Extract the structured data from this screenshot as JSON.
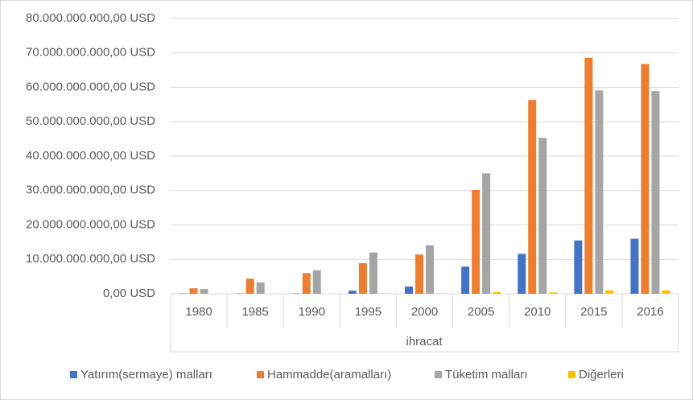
{
  "chart_data": {
    "type": "bar",
    "x_group_label": "ihracat",
    "categories": [
      "1980",
      "1985",
      "1990",
      "1995",
      "2000",
      "2005",
      "2010",
      "2015",
      "2016"
    ],
    "series": [
      {
        "name": "Yatırım(sermaye) malları",
        "color": "#4472c4",
        "values": [
          100000000,
          100000000,
          100000000,
          900000000,
          2100000000,
          7900000000,
          11600000000,
          15500000000,
          16000000000
        ]
      },
      {
        "name": "Hammadde(aramalları)",
        "color": "#ed7d31",
        "values": [
          1600000000,
          4400000000,
          6000000000,
          8900000000,
          11400000000,
          30200000000,
          56300000000,
          68600000000,
          66800000000
        ]
      },
      {
        "name": "Tüketim malları",
        "color": "#a5a5a5",
        "values": [
          1400000000,
          3300000000,
          6800000000,
          12000000000,
          14100000000,
          35000000000,
          45300000000,
          59100000000,
          58900000000
        ]
      },
      {
        "name": "Diğerleri",
        "color": "#ffc000",
        "values": [
          0,
          0,
          0,
          100000000,
          100000000,
          500000000,
          400000000,
          1000000000,
          1000000000
        ]
      }
    ],
    "ylim": [
      0,
      80000000000
    ],
    "yticks": [
      {
        "value": 0,
        "label": "0,00 USD"
      },
      {
        "value": 10000000000,
        "label": "10.000.000.000,00 USD"
      },
      {
        "value": 20000000000,
        "label": "20.000.000.000,00 USD"
      },
      {
        "value": 30000000000,
        "label": "30.000.000.000,00 USD"
      },
      {
        "value": 40000000000,
        "label": "40.000.000.000,00 USD"
      },
      {
        "value": 50000000000,
        "label": "50.000.000.000,00 USD"
      },
      {
        "value": 60000000000,
        "label": "60.000.000.000,00 USD"
      },
      {
        "value": 70000000000,
        "label": "70.000.000.000,00 USD"
      },
      {
        "value": 80000000000,
        "label": "80.000.000.000,00 USD"
      }
    ],
    "grid": true,
    "legend": "bottom"
  }
}
